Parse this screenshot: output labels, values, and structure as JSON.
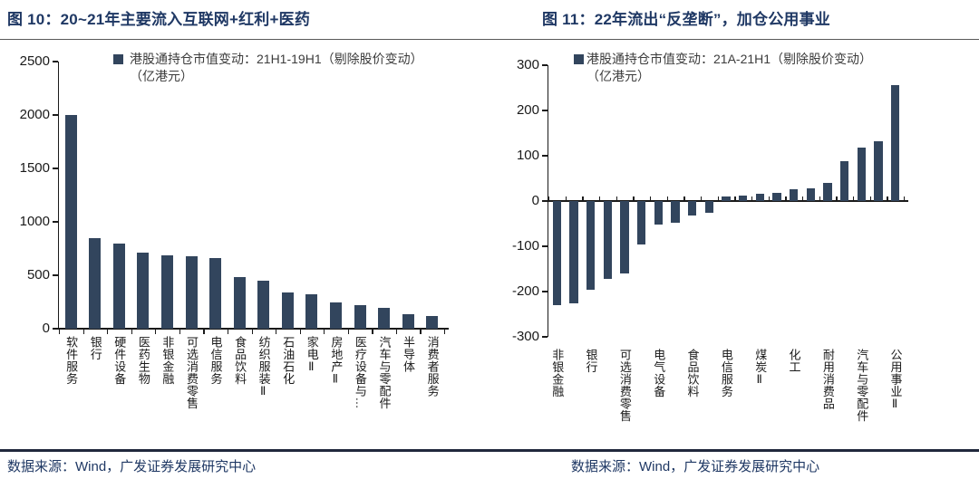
{
  "page": {
    "footer": {
      "left_source": "数据来源：Wind，广发证券发展研究中心",
      "right_source": "数据来源：Wind，广发证券发展研究中心"
    },
    "colors": {
      "title_navy": "#1f3864",
      "bar_navy": "#32455d",
      "axis": "#1a1a1a"
    }
  },
  "figures": [
    {
      "title": "图 10：20~21年主要流入互联网+红利+医药",
      "legend_line1": "港股通持仓市值变动：21H1-19H1（剔除股价变动）",
      "legend_line2": "（亿港元）"
    },
    {
      "title": "图 11：22年流出“反垄断”，加仓公用事业",
      "legend_line1": "港股通持仓市值变动：21A-21H1（剔除股价变动）",
      "legend_line2": "（亿港元）"
    }
  ],
  "chart_data": [
    {
      "type": "bar",
      "title": "图 10：20~21年主要流入互联网+红利+医药",
      "legend": "港股通持仓市值变动：21H1-19H1（剔除股价变动）（亿港元）",
      "unit": "亿港元",
      "categories": [
        "软件服务",
        "银行",
        "硬件设备",
        "医药生物",
        "非银金融",
        "可选消费零售",
        "电信服务",
        "食品饮料",
        "纺织服装Ⅱ",
        "石油石化",
        "家电Ⅱ",
        "房地产Ⅱ",
        "医疗设备与…",
        "汽车与零配件",
        "半导体",
        "消费者服务"
      ],
      "values": [
        2000,
        850,
        800,
        715,
        690,
        680,
        665,
        480,
        450,
        340,
        320,
        250,
        220,
        195,
        135,
        115
      ],
      "ylim": [
        0,
        2500
      ],
      "ytick_step": 500,
      "grid": false,
      "legend_position": "top-left-inside",
      "bar_color": "#32455d"
    },
    {
      "type": "bar",
      "title": "图 11：22年流出“反垄断”，加仓公用事业",
      "legend": "港股通持仓市值变动：21A-21H1（剔除股价变动）（亿港元）",
      "unit": "亿港元",
      "categories": [
        "非银金融",
        "",
        "银行",
        "",
        "可选消费零售",
        "",
        "电气设备",
        "",
        "食品饮料",
        "",
        "电信服务",
        "",
        "煤炭Ⅱ",
        "",
        "化工",
        "",
        "耐用消费品",
        "",
        "汽车与零配件",
        "",
        "公用事业Ⅱ"
      ],
      "values": [
        -230,
        -225,
        -195,
        -172,
        -160,
        -95,
        -52,
        -47,
        -32,
        -25,
        10,
        12,
        17,
        19,
        27,
        29,
        41,
        88,
        118,
        133,
        256
      ],
      "ylim": [
        -300,
        300
      ],
      "ytick_step": 100,
      "grid": false,
      "legend_position": "top-left-inside",
      "bar_color": "#32455d"
    }
  ]
}
